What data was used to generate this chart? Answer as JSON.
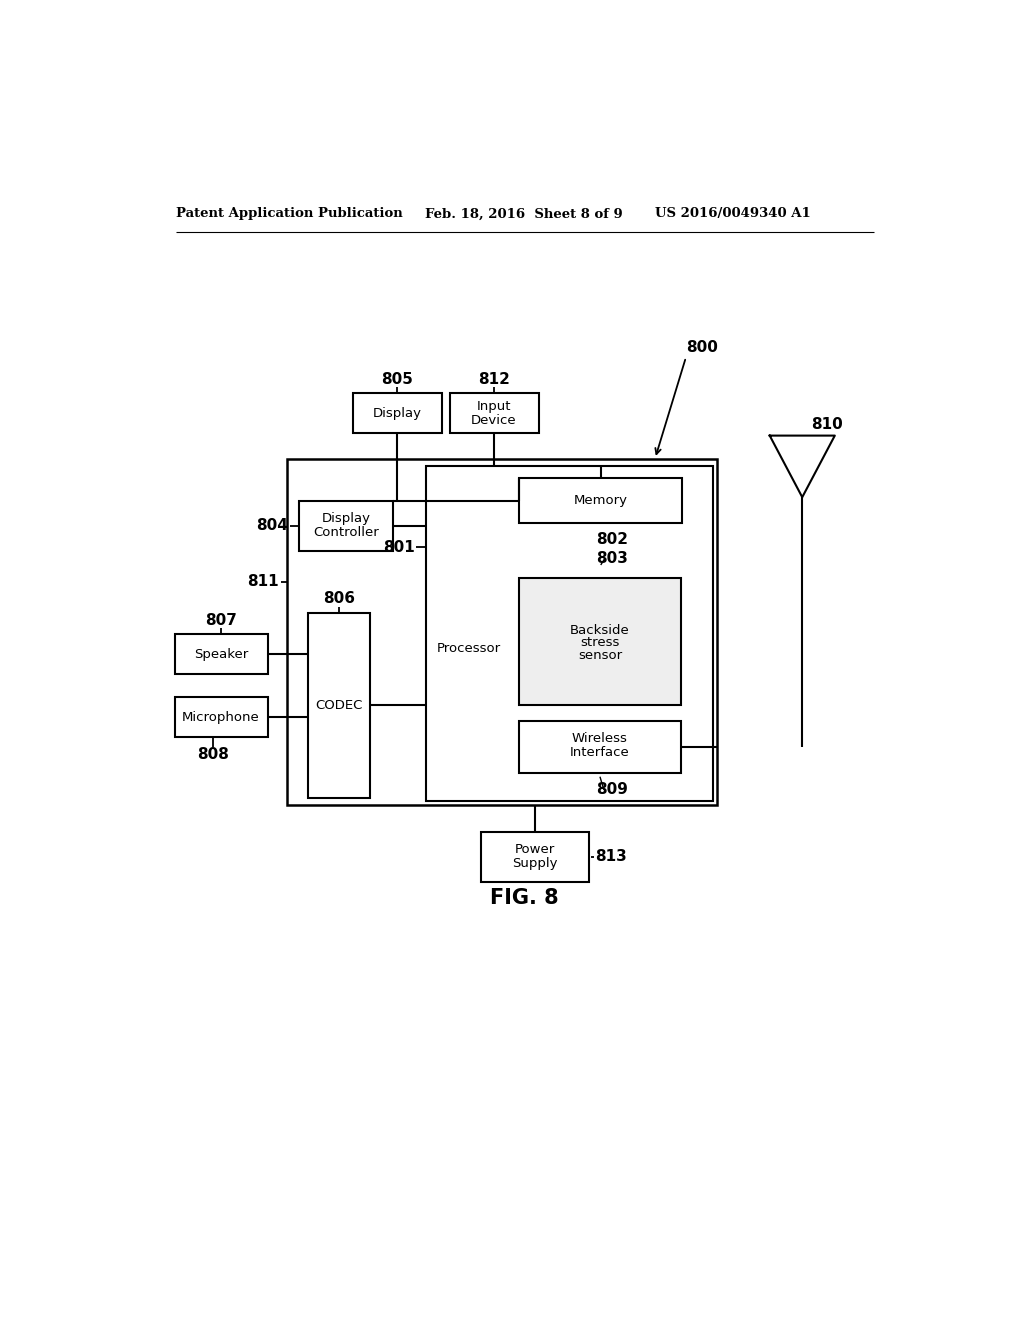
{
  "bg_color": "#ffffff",
  "header_left": "Patent Application Publication",
  "header_mid": "Feb. 18, 2016  Sheet 8 of 9",
  "header_right": "US 2016/0049340 A1",
  "fig_label": "FIG. 8"
}
